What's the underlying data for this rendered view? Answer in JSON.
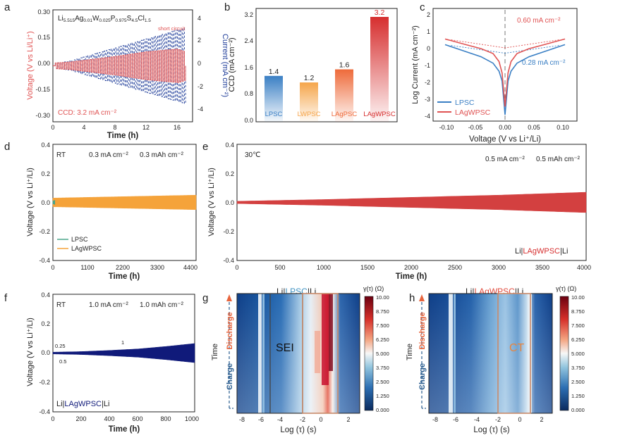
{
  "colors": {
    "red": "#e05353",
    "salmon": "#f08a80",
    "blue": "#1f3d99",
    "navy": "#101a7a",
    "lpsc": "#3a7fc4",
    "lwpsc": "#f5a54a",
    "lagpsc": "#ee6a3a",
    "lagwpsc": "#d62e2e",
    "green": "#4aa58a",
    "orange": "#f5a33a",
    "darkred": "#d34040"
  },
  "panels": {
    "a": {
      "letter": "a",
      "formula": "Li5.515Ag0.01W0.025P0.975S4.5Cl1.5",
      "formula_parts": [
        "Li",
        "5.515",
        "Ag",
        "0.01",
        "W",
        "0.025",
        "P",
        "0.975",
        "S",
        "4.5",
        "Cl",
        "1.5"
      ],
      "annotation_short": "short circuit",
      "ccd_label": "CCD: 3.2 mA cm⁻²",
      "xlabel": "Time (h)",
      "ylabel_left": "Voltage (V vs Li/Li⁺)",
      "ylabel_right": "Current (mA cm⁻²)",
      "x_ticks": [
        "0",
        "4",
        "8",
        "12",
        "16"
      ],
      "yl_ticks": [
        "0.30",
        "0.15",
        "0.00",
        "-0.15",
        "-0.30"
      ],
      "yr_ticks": [
        "4",
        "2",
        "0",
        "-2",
        "-4"
      ]
    },
    "b": {
      "letter": "b",
      "ylabel": "CCD (mA cm⁻²)",
      "y_ticks": [
        "3.2",
        "2.4",
        "1.6",
        "0.8",
        "0.0"
      ]
    },
    "c": {
      "letter": "c",
      "xlabel": "Voltage (V vs Li⁺/Li)",
      "ylabel": "Log Current (mA cm⁻²)",
      "ann_lagwpsc": "0.60 mA cm⁻²",
      "ann_lpsc": "0.28 mA cm⁻²",
      "legend": [
        "LPSC",
        "LAgWPSC"
      ],
      "x_ticks": [
        "-0.10",
        "-0.05",
        "0.00",
        "0.05",
        "0.10"
      ],
      "y_ticks": [
        "2",
        "1",
        "0",
        "-1",
        "-2",
        "-3",
        "-4"
      ]
    },
    "d": {
      "letter": "d",
      "cond_rt": "RT",
      "cond_rate": "0.3 mA cm⁻²",
      "cond_cap": "0.3 mAh cm⁻²",
      "legend": [
        "LPSC",
        "LAgWPSC"
      ],
      "xlabel": "Time (h)",
      "ylabel": "Voltage (V vs Li⁺/Li)",
      "x_ticks": [
        "0",
        "1100",
        "2200",
        "3300",
        "4400"
      ],
      "y_ticks": [
        "0.4",
        "0.2",
        "0.0",
        "-0.2",
        "-0.4"
      ]
    },
    "e": {
      "letter": "e",
      "cond_temp": "30℃",
      "cond_rate": "0.5 mA cm⁻²",
      "cond_cap": "0.5 mAh cm⁻²",
      "cell_pre": "Li|",
      "cell_mid": "LAgWPSC",
      "cell_post": "|Li",
      "xlabel": "Time (h)",
      "ylabel": "Voltage (V vs Li⁺/Li)",
      "x_ticks": [
        "0",
        "500",
        "1000",
        "1500",
        "2000",
        "2500",
        "3000",
        "3500",
        "4000"
      ],
      "y_ticks": [
        "0.4",
        "0.2",
        "0.0",
        "-0.2",
        "-0.4"
      ]
    },
    "f": {
      "letter": "f",
      "cond_rt": "RT",
      "cond_rate": "1.0 mA cm⁻²",
      "cond_cap": "1.0 mAh cm⁻²",
      "mark_025": "0.25",
      "mark_05": "0.5",
      "mark_1": "1",
      "cell_pre": "Li|",
      "cell_mid": "LAgWPSC",
      "cell_post": "|Li",
      "xlabel": "Time (h)",
      "ylabel": "Voltage (V vs Li⁺/Li)",
      "x_ticks": [
        "0",
        "200",
        "400",
        "600",
        "800",
        "1000"
      ],
      "y_ticks": [
        "0.4",
        "0.2",
        "0.0",
        "-0.2",
        "-0.4"
      ]
    },
    "g": {
      "letter": "g",
      "title_pre": "Li|",
      "title_mid": "LPSC",
      "title_post": "|Li",
      "region": "SEI",
      "ylabel": "Time",
      "discharge": "Discharge",
      "charge": "Charge",
      "xlabel": "Log (τ) (s)",
      "x_ticks": [
        "-8",
        "-6",
        "-4",
        "-2",
        "0",
        "2"
      ],
      "cbar_title": "γ(τ) (Ω)",
      "cbar_ticks": [
        "10.00",
        "8.750",
        "7.500",
        "6.250",
        "5.000",
        "3.750",
        "2.500",
        "1.250",
        "0.000"
      ]
    },
    "h": {
      "letter": "h",
      "title_pre": "Li|",
      "title_mid": "LAgWPSC",
      "title_post": "|Li",
      "region": "CT",
      "ylabel": "Time",
      "discharge": "Discharge",
      "charge": "Charge",
      "xlabel": "Log (τ) (s)",
      "x_ticks": [
        "-8",
        "-6",
        "-4",
        "-2",
        "0",
        "2"
      ],
      "cbar_title": "γ(τ) (Ω)",
      "cbar_ticks": [
        "10.00",
        "8.750",
        "7.500",
        "6.250",
        "5.000",
        "3.750",
        "2.500",
        "1.250",
        "0.000"
      ]
    }
  },
  "chart_data": [
    {
      "panel": "a",
      "type": "line",
      "title": "Li5.515Ag0.01W0.025P0.975S4.5Cl1.5",
      "xlabel": "Time (h)",
      "ylabel": "Voltage (V vs Li/Li⁺)",
      "y2label": "Current (mA cm⁻²)",
      "xlim": [
        0,
        18
      ],
      "ylim": [
        -0.3,
        0.3
      ],
      "y2lim": [
        -5,
        5
      ],
      "series": [
        {
          "name": "Voltage",
          "color": "#e05353",
          "envelope_x": [
            0,
            2,
            4,
            8,
            12,
            16,
            17
          ],
          "envelope_y": [
            0.015,
            0.02,
            0.03,
            0.05,
            0.075,
            0.09,
            0.075
          ]
        },
        {
          "name": "Current",
          "color": "#1f3d99",
          "envelope_x": [
            0,
            2,
            4,
            8,
            12,
            16,
            17
          ],
          "envelope_y": [
            0.2,
            0.4,
            0.8,
            1.6,
            2.4,
            3.2,
            3.4
          ]
        }
      ],
      "annotations": [
        "short circuit",
        "CCD: 3.2 mA cm⁻²"
      ]
    },
    {
      "panel": "b",
      "type": "bar",
      "ylabel": "CCD (mA cm⁻²)",
      "ylim": [
        0,
        3.2
      ],
      "categories": [
        "LPSC",
        "LWPSC",
        "LAgPSC",
        "LAgWPSC"
      ],
      "values": [
        1.4,
        1.2,
        1.6,
        3.2
      ],
      "value_labels": [
        "1.4",
        "1.2",
        "1.6",
        "3.2"
      ],
      "colors": [
        "#3a7fc4",
        "#f5a54a",
        "#ee6a3a",
        "#d62e2e"
      ]
    },
    {
      "panel": "c",
      "type": "line",
      "xlabel": "Voltage (V vs Li⁺/Li)",
      "ylabel": "Log Current (mA cm⁻²)",
      "xlim": [
        -0.12,
        0.12
      ],
      "ylim": [
        -4.5,
        2.5
      ],
      "series": [
        {
          "name": "LPSC",
          "color": "#3a7fc4",
          "x": [
            -0.1,
            -0.08,
            -0.06,
            -0.04,
            -0.02,
            -0.01,
            -0.005,
            0,
            0.005,
            0.01,
            0.02,
            0.04,
            0.06,
            0.08,
            0.1
          ],
          "y": [
            0.25,
            0.0,
            -0.25,
            -0.5,
            -0.9,
            -1.4,
            -2.0,
            -4.1,
            -2.0,
            -1.4,
            -0.9,
            -0.5,
            -0.25,
            0.0,
            0.25
          ]
        },
        {
          "name": "LAgWPSC",
          "color": "#e05353",
          "x": [
            -0.1,
            -0.08,
            -0.06,
            -0.04,
            -0.02,
            -0.01,
            -0.005,
            0,
            0.005,
            0.01,
            0.02,
            0.04,
            0.06,
            0.08,
            0.1
          ],
          "y": [
            0.6,
            0.4,
            0.2,
            0.0,
            -0.3,
            -0.8,
            -1.5,
            -3.6,
            -1.5,
            -0.8,
            -0.3,
            0.0,
            0.2,
            0.4,
            0.6
          ]
        }
      ],
      "annotations": [
        "0.60 mA cm⁻²",
        "0.28 mA cm⁻²"
      ],
      "legend": "bottom-left"
    },
    {
      "panel": "d",
      "type": "area",
      "xlabel": "Time (h)",
      "ylabel": "Voltage (V vs Li⁺/Li)",
      "xlim": [
        0,
        4400
      ],
      "ylim": [
        -0.4,
        0.4
      ],
      "series": [
        {
          "name": "LPSC",
          "color": "#4aa58a",
          "x": [
            0,
            30,
            60
          ],
          "y_amplitude": [
            0.01,
            0.012,
            0.015
          ]
        },
        {
          "name": "LAgWPSC",
          "color": "#f5a33a",
          "x": [
            0,
            1100,
            2200,
            3300,
            4400
          ],
          "y_amplitude": [
            0.03,
            0.035,
            0.04,
            0.045,
            0.05
          ]
        }
      ],
      "legend": "bottom-left"
    },
    {
      "panel": "e",
      "type": "area",
      "xlabel": "Time (h)",
      "ylabel": "Voltage (V vs Li⁺/Li)",
      "xlim": [
        0,
        4000
      ],
      "ylim": [
        -0.4,
        0.4
      ],
      "series": [
        {
          "name": "Li|LAgWPSC|Li",
          "color": "#d34040",
          "x": [
            0,
            1000,
            2000,
            3000,
            4000
          ],
          "y_amplitude": [
            0.008,
            0.02,
            0.035,
            0.05,
            0.07
          ]
        }
      ]
    },
    {
      "panel": "f",
      "type": "area",
      "xlabel": "Time (h)",
      "ylabel": "Voltage (V vs Li⁺/Li)",
      "xlim": [
        0,
        1000
      ],
      "ylim": [
        -0.4,
        0.4
      ],
      "series": [
        {
          "name": "Li|LAgWPSC|Li",
          "color": "#101a7a",
          "x": [
            0,
            200,
            400,
            600,
            800,
            1000
          ],
          "y_amplitude": [
            0.006,
            0.01,
            0.018,
            0.028,
            0.045,
            0.065
          ]
        }
      ],
      "annotations": [
        "0.25",
        "0.5",
        "1"
      ]
    },
    {
      "panel": "g",
      "type": "heatmap",
      "title": "Li|LPSC|Li",
      "xlabel": "Log (τ) (s)",
      "ylabel": "Time",
      "xlim": [
        -8.5,
        2.5
      ],
      "colorbar_range": [
        0,
        10
      ],
      "colorbar_label": "γ(τ) (Ω)",
      "highlight_x": [
        -2,
        1
      ],
      "region_label": "SEI"
    },
    {
      "panel": "h",
      "type": "heatmap",
      "title": "Li|LAgWPSC|Li",
      "xlabel": "Log (τ) (s)",
      "ylabel": "Time",
      "xlim": [
        -8.5,
        2.5
      ],
      "colorbar_range": [
        0,
        10
      ],
      "colorbar_label": "γ(τ) (Ω)",
      "highlight_x": [
        -2.5,
        0.5
      ],
      "region_label": "CT"
    }
  ]
}
